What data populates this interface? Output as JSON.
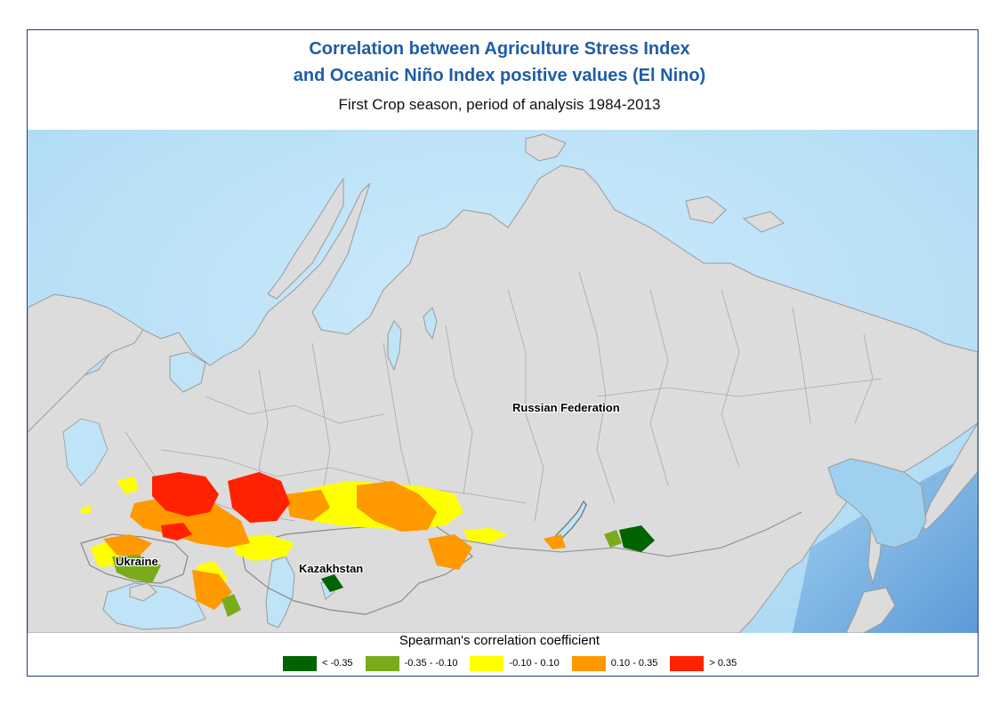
{
  "title_line1": "Correlation between Agriculture Stress Index",
  "title_line2": "and Oceanic Niño Index positive values (El Nino)",
  "subtitle": "First Crop season, period of analysis 1984-2013",
  "labels": {
    "russia": "Russian Federation",
    "ukraine": "Ukraine",
    "kazakhstan": "Kazakhstan"
  },
  "legend": {
    "title": "Spearman's correlation coefficient",
    "items": [
      {
        "label": "< -0.35",
        "color": "#006400"
      },
      {
        "label": "-0.35 - -0.10",
        "color": "#7aab1c"
      },
      {
        "label": "-0.10 - 0.10",
        "color": "#ffff00"
      },
      {
        "label": "0.10 - 0.35",
        "color": "#ff9900"
      },
      {
        "label": "> 0.35",
        "color": "#ff2200"
      }
    ]
  },
  "colors": {
    "ocean": "#bfe3f7",
    "land": "#dcdcdc",
    "border": "#9a9a9a",
    "title": "#1f5da6"
  }
}
